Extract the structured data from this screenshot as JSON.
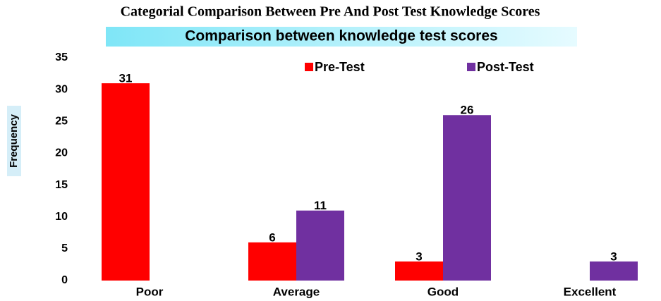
{
  "chart_data": {
    "type": "bar",
    "title": "Categorial Comparison Between Pre And Post Test Knowledge Scores",
    "subtitle": "Comparison between knowledge test scores",
    "y_label": "Frequency",
    "categories": [
      "Poor",
      "Average",
      "Good",
      "Excellent"
    ],
    "series": [
      {
        "name": "Pre-Test",
        "color": "#ff0000",
        "values": [
          31,
          6,
          3,
          null
        ]
      },
      {
        "name": "Post-Test",
        "color": "#7030a0",
        "values": [
          null,
          11,
          26,
          3
        ]
      }
    ],
    "ylim": [
      0,
      35
    ],
    "yticks": [
      0,
      5,
      10,
      15,
      20,
      25,
      30,
      35
    ],
    "grid": false,
    "legend": "top"
  }
}
